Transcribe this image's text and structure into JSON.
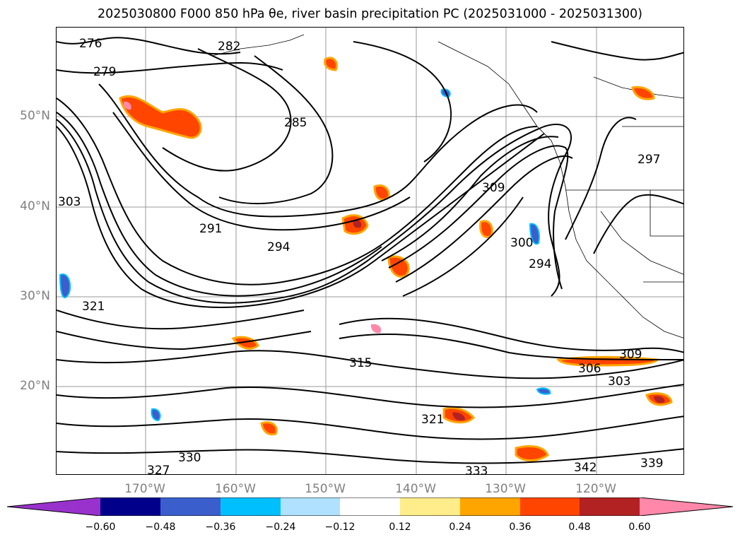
{
  "title": "2025030800 F000 850 hPa θe, river basin precipitation PC (2025031000 - 2025031300)",
  "map": {
    "lat_labels": [
      "50°N",
      "40°N",
      "30°N",
      "20°N"
    ],
    "lon_labels": [
      "170°W",
      "160°W",
      "150°W",
      "140°W",
      "130°W",
      "120°W"
    ],
    "contour_labels": [
      "276",
      "282",
      "279",
      "285",
      "303",
      "291",
      "294",
      "309",
      "300",
      "294",
      "321",
      "315",
      "306",
      "303",
      "309",
      "321",
      "330",
      "333",
      "342",
      "339",
      "297",
      "327"
    ]
  },
  "colorbar": {
    "ticks": [
      "−0.60",
      "−0.48",
      "−0.36",
      "−0.24",
      "−0.12",
      "0.12",
      "0.24",
      "0.36",
      "0.48",
      "0.60"
    ],
    "colors": [
      "#9932cc",
      "#00008b",
      "#3a5fcd",
      "#00bfff",
      "#b0e2ff",
      "#ffffff",
      "#ffec8b",
      "#ffa500",
      "#ff4500",
      "#b22222",
      "#ff88aa"
    ]
  }
}
